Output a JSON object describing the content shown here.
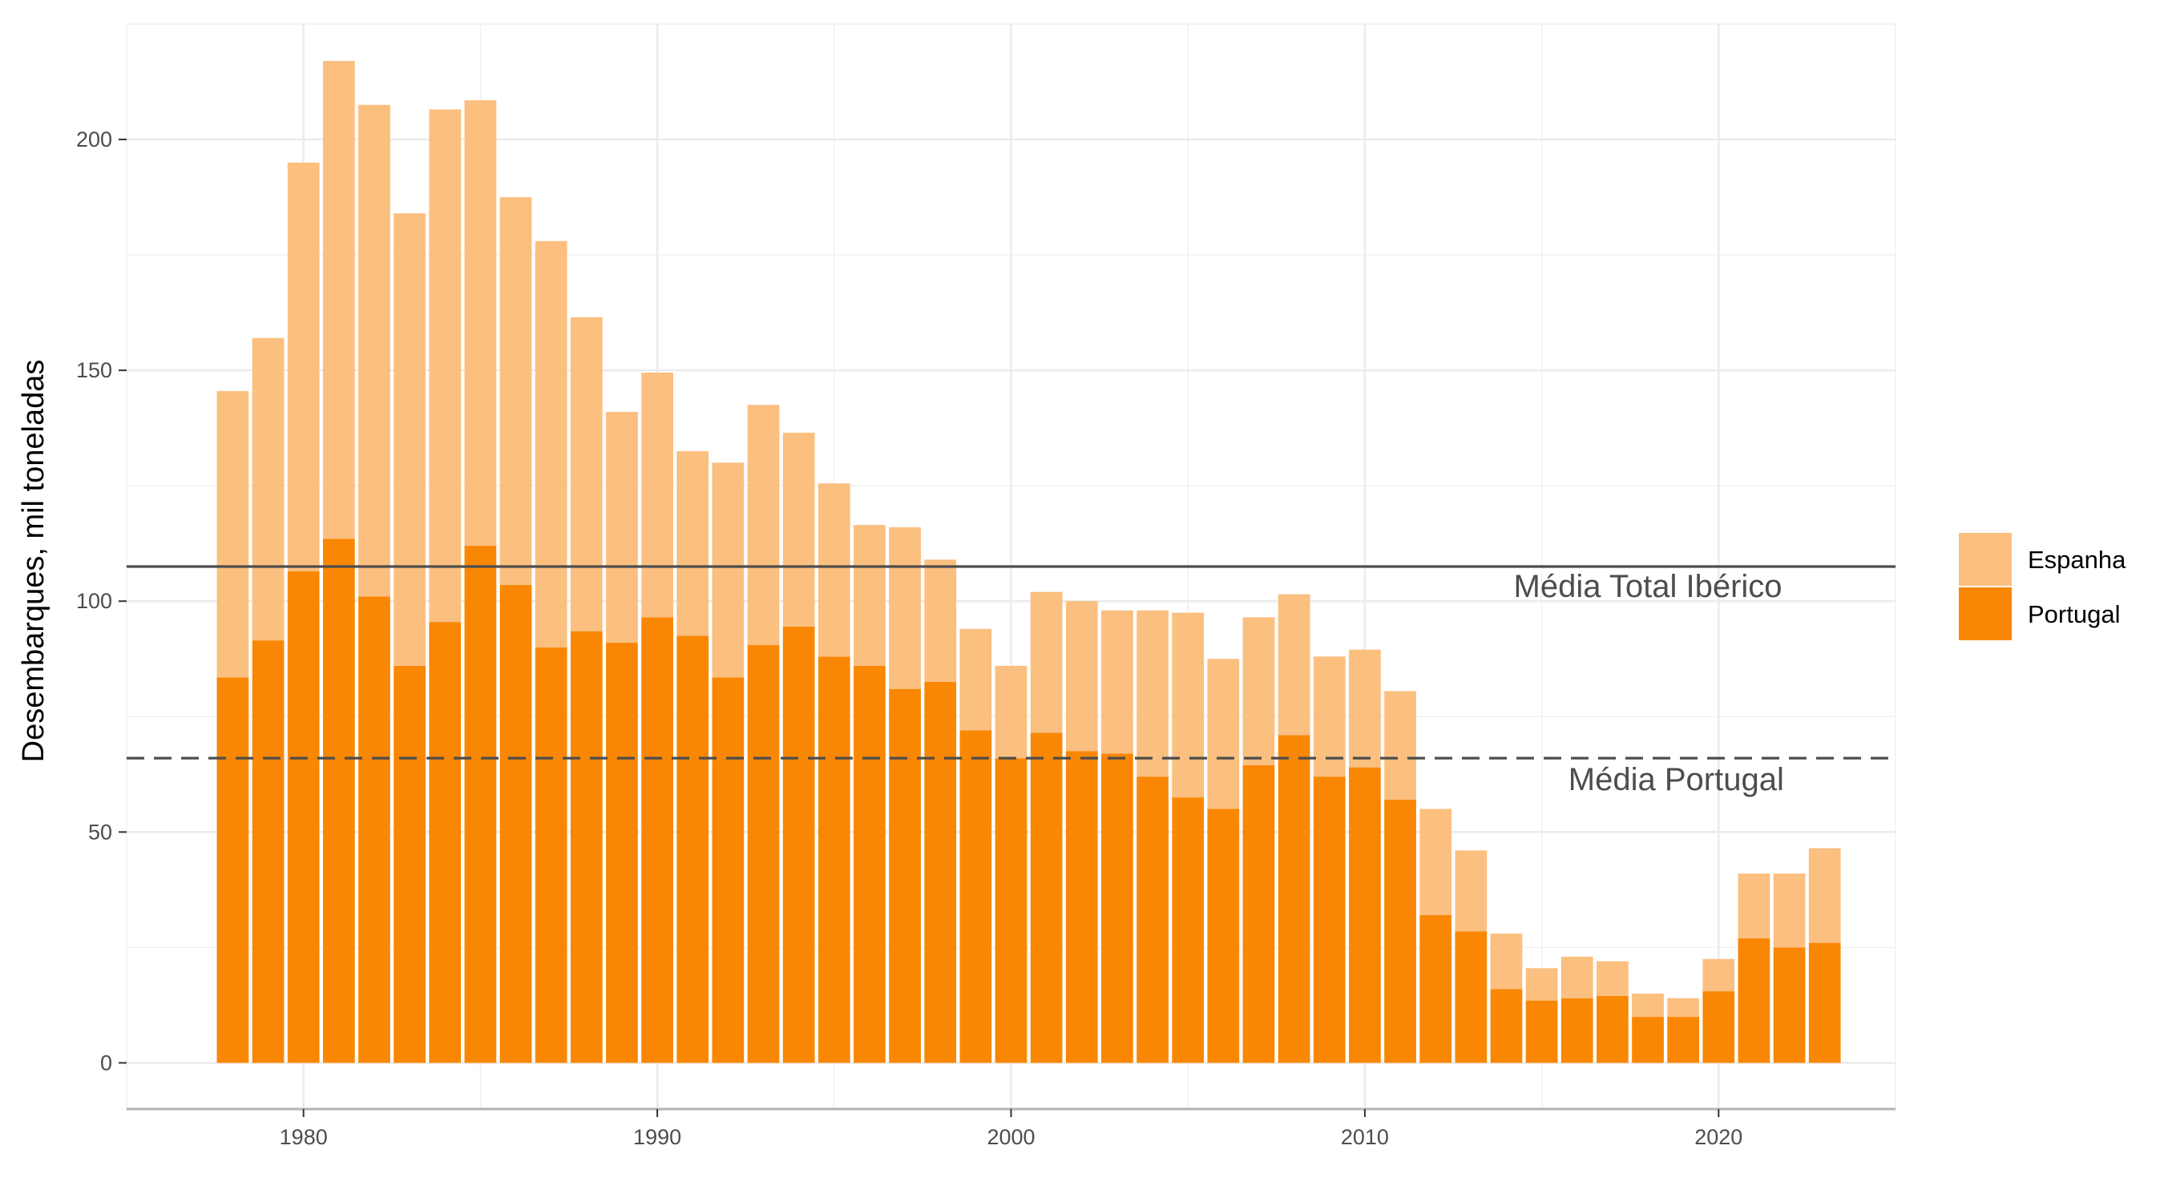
{
  "chart_data": {
    "type": "bar",
    "stacked": true,
    "title": "",
    "xlabel": "",
    "ylabel": "Desembarques, mil toneladas",
    "xlim": [
      1975,
      2025
    ],
    "ylim": [
      -10,
      225
    ],
    "x_ticks": [
      1980,
      1990,
      2000,
      2010,
      2020
    ],
    "y_ticks": [
      0,
      50,
      100,
      150,
      200
    ],
    "grid": true,
    "legend_position": "right",
    "x": [
      1978,
      1979,
      1980,
      1981,
      1982,
      1983,
      1984,
      1985,
      1986,
      1987,
      1988,
      1989,
      1990,
      1991,
      1992,
      1993,
      1994,
      1995,
      1996,
      1997,
      1998,
      1999,
      2000,
      2001,
      2002,
      2003,
      2004,
      2005,
      2006,
      2007,
      2008,
      2009,
      2010,
      2011,
      2012,
      2013,
      2014,
      2015,
      2016,
      2017,
      2018,
      2019,
      2020,
      2021,
      2022,
      2023
    ],
    "series": [
      {
        "name": "Portugal",
        "color": "#f98703",
        "values": [
          83.5,
          91.5,
          106.5,
          113.5,
          101,
          86,
          95.5,
          112,
          103.5,
          90,
          93.5,
          91,
          96.5,
          92.5,
          83.5,
          90.5,
          94.5,
          88,
          86,
          81,
          82.5,
          72,
          66,
          71.5,
          67.5,
          67,
          62,
          57.5,
          55,
          64.5,
          71,
          62,
          64,
          57,
          32,
          28.5,
          16,
          13.5,
          14,
          14.5,
          10,
          10,
          15.5,
          27,
          25,
          26
        ]
      },
      {
        "name": "Espanha",
        "color": "#fbbf7f",
        "values": [
          62,
          65.5,
          88.5,
          103.5,
          106.5,
          98,
          111,
          96.5,
          84,
          88,
          68,
          50,
          53,
          40,
          46.5,
          52,
          42,
          37.5,
          30.5,
          35,
          26.5,
          22,
          20,
          30.5,
          32.5,
          31,
          36,
          40,
          32.5,
          32,
          30.5,
          26,
          25.5,
          23.5,
          23,
          17.5,
          12,
          7,
          9,
          7.5,
          5,
          4,
          7,
          14,
          16,
          20.5
        ]
      }
    ],
    "reference_lines": [
      {
        "label": "Média Total Ibérico",
        "value": 107.5,
        "style": "solid",
        "color": "#4d4d4d"
      },
      {
        "label": "Média Portugal",
        "value": 66,
        "style": "dashed",
        "color": "#4d4d4d"
      }
    ],
    "legend": [
      "Espanha",
      "Portugal"
    ]
  }
}
